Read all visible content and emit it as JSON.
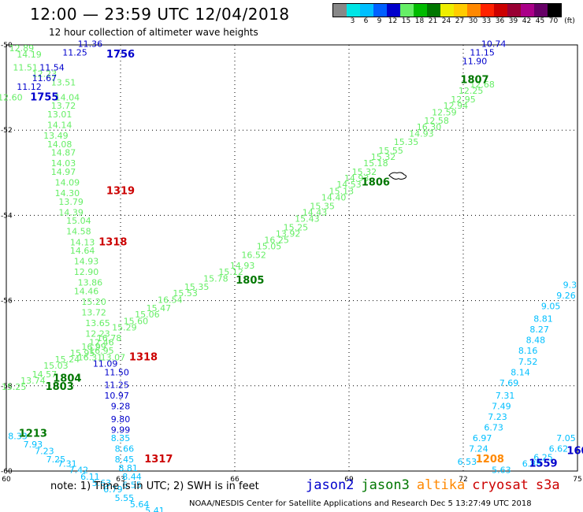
{
  "header": {
    "title": "12:00 — 23:59 UTC 12/04/2018",
    "subtitle": "12 hour collection of altimeter wave heights"
  },
  "legend": {
    "unit": "(ft)",
    "items": [
      {
        "label": "",
        "color": "#888888"
      },
      {
        "label": "3",
        "color": "#00e5e5"
      },
      {
        "label": "6",
        "color": "#00bfff"
      },
      {
        "label": "9",
        "color": "#0060ff"
      },
      {
        "label": "12",
        "color": "#0000cc"
      },
      {
        "label": "15",
        "color": "#66ee66"
      },
      {
        "label": "18",
        "color": "#00bb00"
      },
      {
        "label": "21",
        "color": "#007700"
      },
      {
        "label": "24",
        "color": "#eeee00"
      },
      {
        "label": "27",
        "color": "#ffcc00"
      },
      {
        "label": "30",
        "color": "#ff8800"
      },
      {
        "label": "33",
        "color": "#ff2200"
      },
      {
        "label": "36",
        "color": "#cc0000"
      },
      {
        "label": "39",
        "color": "#990033"
      },
      {
        "label": "42",
        "color": "#aa0088"
      },
      {
        "label": "45",
        "color": "#660066"
      },
      {
        "label": "70",
        "color": "#000000"
      }
    ]
  },
  "map": {
    "lon_ticks": [
      "60",
      "63",
      "66",
      "69",
      "72",
      "75"
    ],
    "lat_ticks": [
      "-50",
      "-52",
      "-54",
      "-56",
      "-58",
      "-60"
    ],
    "lon_range": [
      60,
      75
    ],
    "lat_range": [
      -50,
      -60
    ]
  },
  "satellites": [
    {
      "name": "jason2",
      "color": "#0000cc"
    },
    {
      "name": "jason3",
      "color": "#007700"
    },
    {
      "name": "altika",
      "color": "#ff8800"
    },
    {
      "name": "cryosat",
      "color": "#cc0000"
    },
    {
      "name": "s3a",
      "color": "#cc0000"
    }
  ],
  "note": "note: 1) Time is in UTC; 2) SWH is in feet",
  "footer": "NOAA/NESDIS Center for Satellite Applications and Research   Dec  5 13:27:49 UTC 2018",
  "time_labels": [
    {
      "text": "1756",
      "lon": 63.0,
      "lat": -50.3,
      "color": "#0000cc"
    },
    {
      "text": "1755",
      "lon": 61.0,
      "lat": -51.3,
      "color": "#0000cc"
    },
    {
      "text": "1807",
      "lon": 72.3,
      "lat": -50.9,
      "color": "#007700"
    },
    {
      "text": "1319",
      "lon": 63.0,
      "lat": -53.5,
      "color": "#cc0000"
    },
    {
      "text": "1318",
      "lon": 62.8,
      "lat": -54.7,
      "color": "#cc0000"
    },
    {
      "text": "1806",
      "lon": 69.7,
      "lat": -53.3,
      "color": "#007700"
    },
    {
      "text": "1805",
      "lon": 66.4,
      "lat": -55.6,
      "color": "#007700"
    },
    {
      "text": "1318",
      "lon": 63.6,
      "lat": -57.4,
      "color": "#cc0000"
    },
    {
      "text": "1804",
      "lon": 61.6,
      "lat": -57.9,
      "color": "#007700"
    },
    {
      "text": "1803",
      "lon": 61.4,
      "lat": -58.1,
      "color": "#007700"
    },
    {
      "text": "1213",
      "lon": 60.7,
      "lat": -59.2,
      "color": "#007700"
    },
    {
      "text": "1317",
      "lon": 64.0,
      "lat": -59.8,
      "color": "#cc0000"
    },
    {
      "text": "1208",
      "lon": 72.7,
      "lat": -59.8,
      "color": "#ff8800"
    },
    {
      "text": "1559",
      "lon": 74.1,
      "lat": -59.9,
      "color": "#0000cc"
    },
    {
      "text": "160",
      "lon": 75.0,
      "lat": -59.6,
      "color": "#0000cc"
    }
  ],
  "tracks": [
    {
      "name": "jason3-west",
      "color": "#66ee66",
      "size": 11,
      "points": [
        [
          "12.89",
          60.4,
          -50.15
        ],
        [
          "14.19",
          60.6,
          -50.3
        ],
        [
          "11.51",
          60.5,
          -50.6
        ],
        [
          "12.23",
          61.0,
          -50.75
        ],
        [
          "13.51",
          61.5,
          -50.95
        ],
        [
          "12.60",
          60.1,
          -51.3
        ],
        [
          "14.04",
          61.6,
          -51.3
        ],
        [
          "13.72",
          61.5,
          -51.5
        ],
        [
          "13.01",
          61.4,
          -51.7
        ],
        [
          "14.14",
          61.4,
          -51.95
        ],
        [
          "13.49",
          61.3,
          -52.2
        ],
        [
          "14.08",
          61.4,
          -52.4
        ],
        [
          "14.87",
          61.5,
          -52.6
        ],
        [
          "14.03",
          61.5,
          -52.85
        ],
        [
          "14.97",
          61.5,
          -53.05
        ],
        [
          "14.09",
          61.6,
          -53.3
        ],
        [
          "14.30",
          61.6,
          -53.55
        ],
        [
          "13.79",
          61.7,
          -53.75
        ],
        [
          "14.39",
          61.7,
          -54.0
        ],
        [
          "15.04",
          61.9,
          -54.2
        ],
        [
          "14.58",
          61.9,
          -54.45
        ],
        [
          "14.13",
          62.0,
          -54.7
        ],
        [
          "14.64",
          62.0,
          -54.9
        ],
        [
          "14.93",
          62.1,
          -55.15
        ],
        [
          "12.90",
          62.1,
          -55.4
        ],
        [
          "13.86",
          62.2,
          -55.65
        ],
        [
          "14.46",
          62.1,
          -55.85
        ],
        [
          "15.20",
          62.3,
          -56.1
        ],
        [
          "13.72",
          62.3,
          -56.35
        ],
        [
          "13.65",
          62.4,
          -56.6
        ],
        [
          "12.23",
          62.4,
          -56.85
        ],
        [
          "12.46",
          62.5,
          -57.05
        ],
        [
          "16.95",
          62.5,
          -57.25
        ],
        [
          "16.31",
          62.2,
          -57.4
        ],
        [
          "13.07",
          62.8,
          -57.4
        ]
      ]
    },
    {
      "name": "jason3-diagonal",
      "color": "#66ee66",
      "size": 11,
      "points": [
        [
          "15.25",
          60.2,
          -58.1
        ],
        [
          "13.74",
          60.7,
          -57.95
        ],
        [
          "14.57",
          61.0,
          -57.8
        ],
        [
          "15.03",
          61.3,
          -57.6
        ],
        [
          "15.24",
          61.6,
          -57.45
        ],
        [
          "15.95",
          62.0,
          -57.3
        ],
        [
          "16.99",
          62.3,
          -57.15
        ],
        [
          "16.78",
          62.7,
          -56.95
        ],
        [
          "15.29",
          63.1,
          -56.7
        ],
        [
          "15.60",
          63.4,
          -56.55
        ],
        [
          "15.06",
          63.7,
          -56.4
        ],
        [
          "15.47",
          64.0,
          -56.25
        ],
        [
          "16.54",
          64.3,
          -56.05
        ],
        [
          "15.53",
          64.7,
          -55.9
        ],
        [
          "15.35",
          65.0,
          -55.75
        ],
        [
          "15.78",
          65.5,
          -55.55
        ],
        [
          "15.12",
          65.9,
          -55.4
        ],
        [
          "14.93",
          66.2,
          -55.25
        ],
        [
          "16.52",
          66.5,
          -55.0
        ],
        [
          "15.05",
          66.9,
          -54.8
        ],
        [
          "16.25",
          67.1,
          -54.65
        ],
        [
          "13.92",
          67.4,
          -54.5
        ],
        [
          "15.25",
          67.6,
          -54.35
        ],
        [
          "15.43",
          67.9,
          -54.15
        ],
        [
          "14.43",
          68.1,
          -54.0
        ],
        [
          "15.35",
          68.3,
          -53.85
        ],
        [
          "14.40",
          68.6,
          -53.65
        ],
        [
          "15.13",
          68.8,
          -53.5
        ],
        [
          "14.53",
          69.0,
          -53.35
        ],
        [
          "14.93",
          69.2,
          -53.2
        ],
        [
          "15.32",
          69.4,
          -53.05
        ],
        [
          "15.18",
          69.7,
          -52.85
        ],
        [
          "15.32",
          69.9,
          -52.7
        ],
        [
          "15.55",
          70.1,
          -52.55
        ],
        [
          "15.35",
          70.5,
          -52.35
        ],
        [
          "14.93",
          70.9,
          -52.15
        ],
        [
          "16.30",
          71.1,
          -52.0
        ],
        [
          "12.58",
          71.3,
          -51.85
        ],
        [
          "12.59",
          71.5,
          -51.65
        ],
        [
          "12.94",
          71.8,
          -51.5
        ],
        [
          "12.95",
          72.0,
          -51.35
        ],
        [
          "12.25",
          72.2,
          -51.15
        ],
        [
          "12.68",
          72.5,
          -51.0
        ]
      ]
    },
    {
      "name": "jason2-north-w",
      "color": "#0000cc",
      "size": 11,
      "points": [
        [
          "11.36",
          62.2,
          -50.05
        ],
        [
          "11.25",
          61.8,
          -50.25
        ],
        [
          "11.54",
          61.2,
          -50.6
        ],
        [
          "11.67",
          61.0,
          -50.85
        ],
        [
          "11.12",
          60.6,
          -51.05
        ],
        [
          "10.74",
          72.8,
          -50.05
        ],
        [
          "11.15",
          72.5,
          -50.25
        ],
        [
          "11.90",
          72.3,
          -50.45
        ]
      ]
    },
    {
      "name": "jason2-south",
      "color": "#0000cc",
      "size": 11,
      "points": [
        [
          "11.09",
          62.6,
          -57.55
        ],
        [
          "11.50",
          62.9,
          -57.75
        ],
        [
          "11.25",
          62.9,
          -58.05
        ],
        [
          "10.97",
          62.9,
          -58.3
        ],
        [
          "9.28",
          63.0,
          -58.55
        ],
        [
          "9.80",
          63.0,
          -58.85
        ],
        [
          "9.99",
          63.0,
          -59.1
        ]
      ]
    },
    {
      "name": "jason2-south-cyan",
      "color": "#00bfff",
      "size": 11,
      "points": [
        [
          "8.35",
          63.0,
          -59.3
        ],
        [
          "8.66",
          63.1,
          -59.55
        ],
        [
          "8.45",
          63.1,
          -59.8
        ],
        [
          "8.81",
          63.2,
          -60.0
        ],
        [
          "8.44",
          63.3,
          -60.2
        ],
        [
          "6.55",
          63.3,
          -60.4
        ],
        [
          "8.33",
          60.3,
          -59.25
        ],
        [
          "7.93",
          60.7,
          -59.45
        ],
        [
          "7.23",
          61.0,
          -59.6
        ],
        [
          "7.25",
          61.3,
          -59.8
        ],
        [
          "7.31",
          61.6,
          -59.9
        ],
        [
          "7.42",
          61.9,
          -60.05
        ],
        [
          "6.11",
          62.2,
          -60.2
        ],
        [
          "5.63",
          62.5,
          -60.35
        ],
        [
          "6.79",
          62.8,
          -60.5
        ],
        [
          "5.55",
          63.1,
          -60.7
        ],
        [
          "5.64",
          63.5,
          -60.85
        ],
        [
          "5.41",
          63.9,
          -61.0
        ]
      ]
    },
    {
      "name": "s3a-east",
      "color": "#00bfff",
      "size": 11,
      "points": [
        [
          "9.3",
          74.8,
          -55.7
        ],
        [
          "9.26",
          74.7,
          -55.95
        ],
        [
          "9.05",
          74.3,
          -56.2
        ],
        [
          "8.81",
          74.1,
          -56.5
        ],
        [
          "8.27",
          74.0,
          -56.75
        ],
        [
          "8.48",
          73.9,
          -57.0
        ],
        [
          "8.16",
          73.7,
          -57.25
        ],
        [
          "7.52",
          73.7,
          -57.5
        ],
        [
          "8.14",
          73.5,
          -57.75
        ],
        [
          "7.69",
          73.2,
          -58.0
        ],
        [
          "7.31",
          73.1,
          -58.3
        ],
        [
          "7.49",
          73.0,
          -58.55
        ],
        [
          "7.23",
          72.9,
          -58.8
        ],
        [
          "6.73",
          72.8,
          -59.05
        ],
        [
          "6.97",
          72.5,
          -59.3
        ],
        [
          "7.24",
          72.4,
          -59.55
        ],
        [
          "6.53",
          72.1,
          -59.85
        ],
        [
          "7.05",
          74.7,
          -59.3
        ],
        [
          "6.62",
          74.5,
          -59.55
        ],
        [
          "6.25",
          74.1,
          -59.75
        ],
        [
          "6.88",
          73.8,
          -59.9
        ],
        [
          "5.63",
          73.0,
          -60.05
        ]
      ]
    }
  ],
  "islands": [
    {
      "lon": 70.3,
      "lat": -53.1
    }
  ]
}
